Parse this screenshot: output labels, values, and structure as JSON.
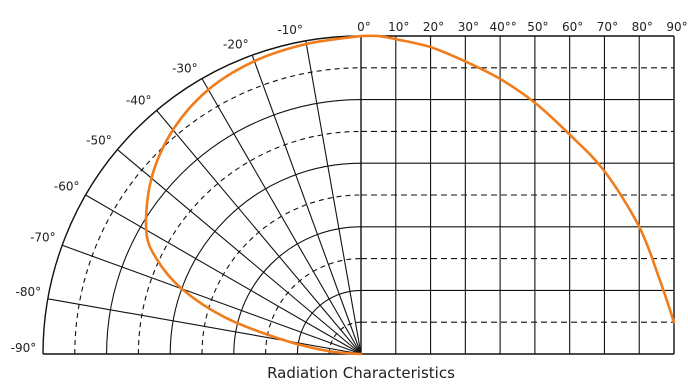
{
  "chart_data": {
    "type": "line",
    "title": "Radiation Characteristics",
    "polar_angle_labels": [
      "-10°",
      "-20°",
      "-30°",
      "-40°",
      "-50°",
      "-60°",
      "-70°",
      "-80°",
      "-90°"
    ],
    "x_tick_labels": [
      "0°",
      "10°",
      "20°",
      "30°",
      "40°°",
      "50°",
      "60°",
      "70°",
      "80°",
      "90°"
    ],
    "series": [
      {
        "curve": "polar",
        "colors": "#f07c1c",
        "points": [
          {
            "angle": 0,
            "r": 1.0
          },
          {
            "angle": -10,
            "r": 0.99
          },
          {
            "angle": -20,
            "r": 0.98
          },
          {
            "angle": -30,
            "r": 0.96
          },
          {
            "angle": -40,
            "r": 0.92
          },
          {
            "angle": -50,
            "r": 0.86
          },
          {
            "angle": -60,
            "r": 0.78
          },
          {
            "angle": -65,
            "r": 0.71
          },
          {
            "angle": -70,
            "r": 0.6
          },
          {
            "angle": -75,
            "r": 0.44
          },
          {
            "angle": -80,
            "r": 0.24
          },
          {
            "angle": -85,
            "r": 0.1
          },
          {
            "angle": -90,
            "r": 0.0
          }
        ]
      },
      {
        "curve": "cartesian",
        "colors": "#f07c1c",
        "points": [
          {
            "x": 0,
            "y": 1.0
          },
          {
            "x": 5,
            "y": 1.0
          },
          {
            "x": 10,
            "y": 0.99
          },
          {
            "x": 20,
            "y": 0.965
          },
          {
            "x": 30,
            "y": 0.92
          },
          {
            "x": 40,
            "y": 0.865
          },
          {
            "x": 50,
            "y": 0.79
          },
          {
            "x": 60,
            "y": 0.69
          },
          {
            "x": 70,
            "y": 0.575
          },
          {
            "x": 80,
            "y": 0.4
          },
          {
            "x": 86,
            "y": 0.23
          },
          {
            "x": 90,
            "y": 0.1
          }
        ]
      }
    ],
    "grid": true,
    "colors": {
      "grid": "#111111",
      "series": "#f07c1c"
    }
  }
}
